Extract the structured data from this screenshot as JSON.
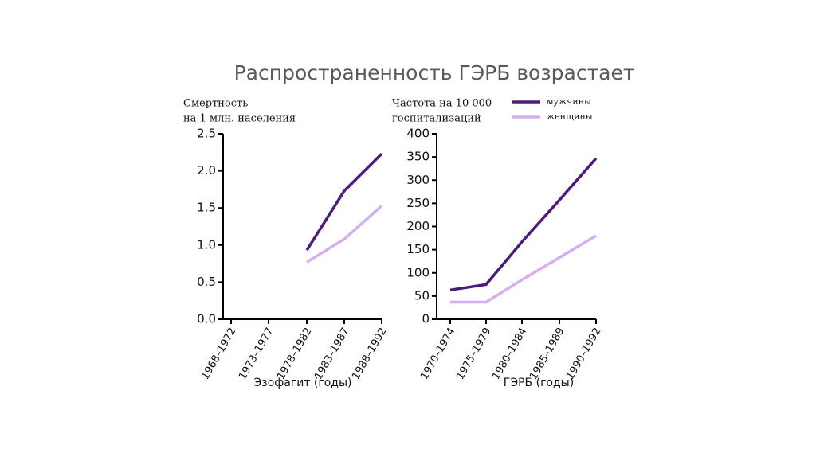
{
  "title": "Распространенность ГЭРБ возрастает",
  "chart_data": [
    {
      "type": "line",
      "ylabel": [
        "Смертность",
        "на 1 млн. населения"
      ],
      "xlabel": "Эзофагит (годы)",
      "categories": [
        "1968–1972",
        "1973–1977",
        "1978–1982",
        "1983–1987",
        "1988–1992"
      ],
      "ylim": [
        0,
        2.5
      ],
      "yticks": [
        {
          "value": 0,
          "label": "0.0"
        },
        0.5,
        {
          "value": 1,
          "label": "1.0"
        },
        1.5,
        {
          "value": 2,
          "label": "2.0"
        },
        2.5
      ],
      "series": [
        {
          "color": "#4b1c7a",
          "values": [
            null,
            null,
            0.93,
            1.73,
            2.23
          ]
        },
        {
          "color": "#d4b0f2",
          "values": [
            null,
            null,
            0.77,
            1.08,
            1.53
          ]
        }
      ]
    },
    {
      "type": "line",
      "ylabel": [
        "Частота на 10 000",
        "госпитализаций"
      ],
      "xlabel": "ГЭРБ (годы)",
      "categories": [
        "1970–1974",
        "1975–1979",
        "1980–1984",
        "1985–1989",
        "1990–1992"
      ],
      "ylim": [
        0,
        400
      ],
      "yticks": [
        0,
        50,
        100,
        150,
        200,
        250,
        300,
        350,
        400
      ],
      "series": [
        {
          "name": "мужчины",
          "color": "#4b1c7a",
          "values": [
            63,
            75,
            167,
            257,
            347
          ]
        },
        {
          "name": "женщины",
          "color": "#d4b0f2",
          "values": [
            37,
            37,
            85,
            133,
            180
          ]
        }
      ]
    }
  ]
}
